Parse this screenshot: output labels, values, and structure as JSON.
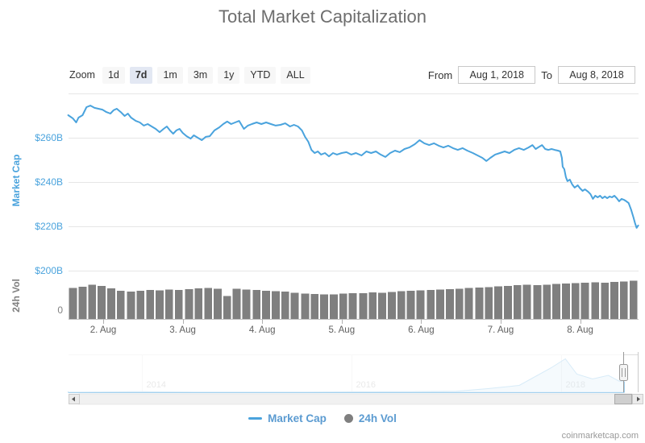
{
  "header": {
    "title": "Total Market Capitalization"
  },
  "range_selector": {
    "zoom_label": "Zoom",
    "buttons": [
      {
        "label": "1d",
        "selected": false
      },
      {
        "label": "7d",
        "selected": true
      },
      {
        "label": "1m",
        "selected": false
      },
      {
        "label": "3m",
        "selected": false
      },
      {
        "label": "1y",
        "selected": false
      },
      {
        "label": "YTD",
        "selected": false
      },
      {
        "label": "ALL",
        "selected": false
      }
    ],
    "from_label": "From",
    "from_value": "Aug 1, 2018",
    "to_label": "To",
    "to_value": "Aug 8, 2018"
  },
  "legend": {
    "items": [
      {
        "label": "Market Cap",
        "marker": "line",
        "marker_color": "#4aa3dd",
        "text_color": "#5b9bd1"
      },
      {
        "label": "24h Vol",
        "marker": "circle",
        "marker_color": "#7f7f7f",
        "text_color": "#5b9bd1"
      }
    ]
  },
  "watermark": {
    "text": "coinmarketcap.com"
  },
  "colors": {
    "line_blue": "#4aa3dd",
    "axis_label_blue": "#4aa3dd",
    "volume_gray": "#7f7f7f",
    "grid": "#e6e6e6",
    "x_label": "#606060",
    "nav_label": "#999999"
  },
  "chart_data": {
    "type": "line",
    "title": "Total Market Capitalization",
    "x_axis": {
      "unit": "date (August 2018)",
      "tick_days": [
        2,
        3,
        4,
        5,
        6,
        7,
        8
      ],
      "tick_labels": [
        "2. Aug",
        "3. Aug",
        "4. Aug",
        "5. Aug",
        "6. Aug",
        "7. Aug",
        "8. Aug"
      ],
      "range_days": [
        1.56,
        8.73
      ]
    },
    "y_axis_market_cap": {
      "title": "Market Cap",
      "unit": "$B",
      "grid_values": [
        280,
        260,
        240,
        220,
        200
      ],
      "tick_values": [
        260,
        240,
        220,
        200
      ],
      "tick_labels": [
        "$260B",
        "$240B",
        "$220B",
        "$200B"
      ],
      "ylim": [
        197,
        282
      ]
    },
    "y_axis_volume": {
      "title": "24h Vol",
      "unit": "$B",
      "tick_values": [
        0
      ],
      "tick_labels": [
        "0"
      ],
      "ylim": [
        0,
        20
      ]
    },
    "series": [
      {
        "name": "Market Cap",
        "type": "line",
        "color": "#4aa3dd",
        "points": [
          [
            1.56,
            270.2
          ],
          [
            1.62,
            268.7
          ],
          [
            1.66,
            266.9
          ],
          [
            1.69,
            269.1
          ],
          [
            1.74,
            270.2
          ],
          [
            1.79,
            273.8
          ],
          [
            1.84,
            274.5
          ],
          [
            1.89,
            273.5
          ],
          [
            1.94,
            273.1
          ],
          [
            1.99,
            272.7
          ],
          [
            2.04,
            271.6
          ],
          [
            2.09,
            270.9
          ],
          [
            2.13,
            272.4
          ],
          [
            2.17,
            273.1
          ],
          [
            2.22,
            271.6
          ],
          [
            2.27,
            269.8
          ],
          [
            2.31,
            270.9
          ],
          [
            2.35,
            269.1
          ],
          [
            2.41,
            267.6
          ],
          [
            2.46,
            266.9
          ],
          [
            2.51,
            265.5
          ],
          [
            2.56,
            266.2
          ],
          [
            2.61,
            265.1
          ],
          [
            2.66,
            264.0
          ],
          [
            2.71,
            262.5
          ],
          [
            2.76,
            264.0
          ],
          [
            2.8,
            265.1
          ],
          [
            2.84,
            263.3
          ],
          [
            2.88,
            261.8
          ],
          [
            2.92,
            263.3
          ],
          [
            2.96,
            264.0
          ],
          [
            3.0,
            262.2
          ],
          [
            3.05,
            260.7
          ],
          [
            3.1,
            259.6
          ],
          [
            3.14,
            261.1
          ],
          [
            3.19,
            260.0
          ],
          [
            3.24,
            258.9
          ],
          [
            3.29,
            260.4
          ],
          [
            3.34,
            260.7
          ],
          [
            3.4,
            263.3
          ],
          [
            3.46,
            264.7
          ],
          [
            3.51,
            266.2
          ],
          [
            3.56,
            267.3
          ],
          [
            3.61,
            266.2
          ],
          [
            3.66,
            266.9
          ],
          [
            3.71,
            267.6
          ],
          [
            3.77,
            264.0
          ],
          [
            3.82,
            265.5
          ],
          [
            3.87,
            266.2
          ],
          [
            3.93,
            266.9
          ],
          [
            3.99,
            266.2
          ],
          [
            4.05,
            266.9
          ],
          [
            4.11,
            266.2
          ],
          [
            4.17,
            265.5
          ],
          [
            4.23,
            265.8
          ],
          [
            4.29,
            266.5
          ],
          [
            4.35,
            265.1
          ],
          [
            4.4,
            265.8
          ],
          [
            4.45,
            265.1
          ],
          [
            4.5,
            263.3
          ],
          [
            4.54,
            260.4
          ],
          [
            4.58,
            258.2
          ],
          [
            4.62,
            254.5
          ],
          [
            4.66,
            253.1
          ],
          [
            4.7,
            253.8
          ],
          [
            4.74,
            252.4
          ],
          [
            4.79,
            253.1
          ],
          [
            4.84,
            251.6
          ],
          [
            4.89,
            253.1
          ],
          [
            4.94,
            252.4
          ],
          [
            5.0,
            253.1
          ],
          [
            5.06,
            253.5
          ],
          [
            5.12,
            252.4
          ],
          [
            5.18,
            253.1
          ],
          [
            5.25,
            252.0
          ],
          [
            5.31,
            253.8
          ],
          [
            5.37,
            253.1
          ],
          [
            5.43,
            253.8
          ],
          [
            5.49,
            252.4
          ],
          [
            5.55,
            251.3
          ],
          [
            5.61,
            253.1
          ],
          [
            5.67,
            254.2
          ],
          [
            5.73,
            253.5
          ],
          [
            5.79,
            254.9
          ],
          [
            5.85,
            255.6
          ],
          [
            5.92,
            257.1
          ],
          [
            5.98,
            258.9
          ],
          [
            6.04,
            257.5
          ],
          [
            6.1,
            256.7
          ],
          [
            6.16,
            257.5
          ],
          [
            6.22,
            256.4
          ],
          [
            6.28,
            255.6
          ],
          [
            6.34,
            256.4
          ],
          [
            6.4,
            255.3
          ],
          [
            6.46,
            254.5
          ],
          [
            6.52,
            255.3
          ],
          [
            6.58,
            254.2
          ],
          [
            6.65,
            253.1
          ],
          [
            6.71,
            252.0
          ],
          [
            6.77,
            250.9
          ],
          [
            6.82,
            249.5
          ],
          [
            6.87,
            250.9
          ],
          [
            6.93,
            252.4
          ],
          [
            6.99,
            253.1
          ],
          [
            7.05,
            253.8
          ],
          [
            7.11,
            253.1
          ],
          [
            7.17,
            254.5
          ],
          [
            7.23,
            255.3
          ],
          [
            7.29,
            254.5
          ],
          [
            7.35,
            255.6
          ],
          [
            7.4,
            256.7
          ],
          [
            7.44,
            254.9
          ],
          [
            7.48,
            255.8
          ],
          [
            7.52,
            256.7
          ],
          [
            7.56,
            254.9
          ],
          [
            7.6,
            254.5
          ],
          [
            7.64,
            254.9
          ],
          [
            7.68,
            254.5
          ],
          [
            7.72,
            254.2
          ],
          [
            7.75,
            253.8
          ],
          [
            7.77,
            250.9
          ],
          [
            7.78,
            246.9
          ],
          [
            7.8,
            245.8
          ],
          [
            7.82,
            242.2
          ],
          [
            7.84,
            240.4
          ],
          [
            7.87,
            241.1
          ],
          [
            7.9,
            238.9
          ],
          [
            7.93,
            237.5
          ],
          [
            7.97,
            238.5
          ],
          [
            8.0,
            237.1
          ],
          [
            8.03,
            236.0
          ],
          [
            8.06,
            236.7
          ],
          [
            8.1,
            235.6
          ],
          [
            8.13,
            234.5
          ],
          [
            8.16,
            232.4
          ],
          [
            8.19,
            233.8
          ],
          [
            8.22,
            233.1
          ],
          [
            8.25,
            233.8
          ],
          [
            8.28,
            232.7
          ],
          [
            8.31,
            233.5
          ],
          [
            8.34,
            232.7
          ],
          [
            8.37,
            233.5
          ],
          [
            8.4,
            233.1
          ],
          [
            8.43,
            233.8
          ],
          [
            8.46,
            232.7
          ],
          [
            8.49,
            231.3
          ],
          [
            8.52,
            232.4
          ],
          [
            8.55,
            232.0
          ],
          [
            8.58,
            231.3
          ],
          [
            8.61,
            230.5
          ],
          [
            8.64,
            227.6
          ],
          [
            8.67,
            224.0
          ],
          [
            8.69,
            221.5
          ],
          [
            8.71,
            219.3
          ],
          [
            8.73,
            220.4
          ]
        ]
      },
      {
        "name": "24h Vol",
        "type": "column",
        "color": "#7f7f7f",
        "points": [
          [
            1.62,
            13.3
          ],
          [
            1.74,
            13.8
          ],
          [
            1.86,
            14.6
          ],
          [
            1.98,
            14.2
          ],
          [
            2.1,
            13.1
          ],
          [
            2.22,
            12.1
          ],
          [
            2.35,
            11.8
          ],
          [
            2.47,
            12.1
          ],
          [
            2.59,
            12.4
          ],
          [
            2.71,
            12.2
          ],
          [
            2.83,
            12.6
          ],
          [
            2.95,
            12.4
          ],
          [
            3.08,
            12.8
          ],
          [
            3.2,
            13.1
          ],
          [
            3.32,
            13.3
          ],
          [
            3.44,
            12.9
          ],
          [
            3.56,
            9.8
          ],
          [
            3.68,
            13.0
          ],
          [
            3.8,
            12.6
          ],
          [
            3.93,
            12.4
          ],
          [
            4.05,
            12.1
          ],
          [
            4.17,
            11.9
          ],
          [
            4.29,
            11.7
          ],
          [
            4.41,
            11.2
          ],
          [
            4.54,
            10.9
          ],
          [
            4.66,
            10.7
          ],
          [
            4.78,
            10.5
          ],
          [
            4.9,
            10.6
          ],
          [
            5.02,
            10.8
          ],
          [
            5.14,
            11.0
          ],
          [
            5.27,
            11.1
          ],
          [
            5.39,
            11.3
          ],
          [
            5.51,
            11.2
          ],
          [
            5.63,
            11.6
          ],
          [
            5.75,
            11.9
          ],
          [
            5.87,
            12.1
          ],
          [
            5.99,
            12.2
          ],
          [
            6.12,
            12.4
          ],
          [
            6.24,
            12.6
          ],
          [
            6.36,
            12.8
          ],
          [
            6.48,
            13.0
          ],
          [
            6.6,
            13.2
          ],
          [
            6.73,
            13.4
          ],
          [
            6.85,
            13.7
          ],
          [
            6.97,
            14.0
          ],
          [
            7.09,
            14.2
          ],
          [
            7.21,
            14.4
          ],
          [
            7.33,
            14.6
          ],
          [
            7.46,
            14.4
          ],
          [
            7.58,
            14.7
          ],
          [
            7.7,
            15.0
          ],
          [
            7.82,
            15.2
          ],
          [
            7.94,
            15.4
          ],
          [
            8.06,
            15.5
          ],
          [
            8.19,
            15.7
          ],
          [
            8.31,
            15.6
          ],
          [
            8.43,
            15.9
          ],
          [
            8.55,
            16.1
          ],
          [
            8.67,
            16.4
          ]
        ]
      }
    ],
    "navigator": {
      "year_labels": [
        "2014",
        "2016",
        "2018"
      ],
      "years": [
        2014,
        2016,
        2018
      ],
      "axis_range_years": [
        2013.3,
        2018.74
      ],
      "series_unit": "$B market cap",
      "series": [
        [
          2013.3,
          2
        ],
        [
          2013.9,
          14
        ],
        [
          2014.0,
          15
        ],
        [
          2014.5,
          6
        ],
        [
          2015.0,
          4
        ],
        [
          2015.5,
          5
        ],
        [
          2016.0,
          12
        ],
        [
          2016.5,
          14
        ],
        [
          2017.0,
          25
        ],
        [
          2017.3,
          90
        ],
        [
          2017.6,
          170
        ],
        [
          2017.9,
          600
        ],
        [
          2018.04,
          830
        ],
        [
          2018.15,
          450
        ],
        [
          2018.3,
          330
        ],
        [
          2018.45,
          420
        ],
        [
          2018.55,
          280
        ],
        [
          2018.6,
          260
        ]
      ],
      "selected_window_years": [
        2018.595,
        2018.74
      ]
    },
    "legend_position": "bottom-center",
    "grid": true
  }
}
